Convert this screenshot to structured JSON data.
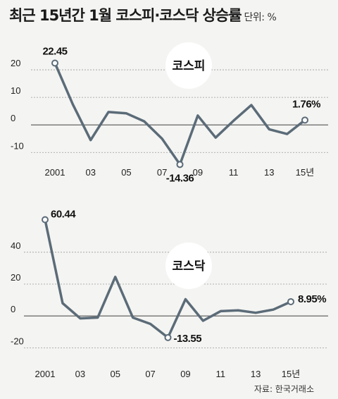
{
  "title": "최근 15년간 1월 코스피·코스닥 상승률",
  "unit": "단위: %",
  "source": "자료: 한국거래소",
  "colors": {
    "line": "#5b6b78",
    "grid": "#9a9a9a",
    "zero": "#555555",
    "bubble": "#ffffff",
    "background": "#f4f4f2"
  },
  "chart_data": [
    {
      "type": "line",
      "title": "코스피",
      "x": [
        2001,
        2002,
        2003,
        2004,
        2005,
        2006,
        2007,
        2008,
        2009,
        2010,
        2011,
        2012,
        2013,
        2014,
        2015
      ],
      "x_tick_labels": [
        "2001",
        "03",
        "05",
        "07",
        "09",
        "11",
        "13",
        "15년"
      ],
      "y": [
        22.45,
        7.5,
        -5.5,
        4.7,
        4.2,
        1.3,
        -5.0,
        -14.36,
        3.4,
        -4.6,
        1.5,
        7.2,
        -1.6,
        -3.3,
        1.76
      ],
      "y_ticks": [
        "20",
        "10",
        "0",
        "-10"
      ],
      "ylim": [
        -13,
        30
      ],
      "annotations": [
        {
          "label": "22.45",
          "x": 2001,
          "y": 22.45
        },
        {
          "label": "-14.36",
          "x": 2008,
          "y": -14.36
        },
        {
          "label": "1.76%",
          "x": 2015,
          "y": 1.76
        }
      ],
      "grid": true
    },
    {
      "type": "line",
      "title": "코스닥",
      "x": [
        2001,
        2002,
        2003,
        2004,
        2005,
        2006,
        2007,
        2008,
        2009,
        2010,
        2011,
        2012,
        2013,
        2014,
        2015
      ],
      "x_tick_labels": [
        "2001",
        "03",
        "05",
        "07",
        "09",
        "11",
        "13",
        "15년"
      ],
      "y": [
        60.44,
        8.0,
        -1.5,
        -1.0,
        24.5,
        -1.0,
        -5.0,
        -13.55,
        10.5,
        -3.0,
        3.0,
        3.5,
        2.0,
        4.0,
        8.95
      ],
      "y_ticks": [
        "40",
        "20",
        "0",
        "-20"
      ],
      "ylim": [
        -30,
        70
      ],
      "annotations": [
        {
          "label": "60.44",
          "x": 2001,
          "y": 60.44
        },
        {
          "label": "-13.55",
          "x": 2008,
          "y": -13.55
        },
        {
          "label": "8.95%",
          "x": 2015,
          "y": 8.95
        }
      ],
      "grid": true
    }
  ]
}
